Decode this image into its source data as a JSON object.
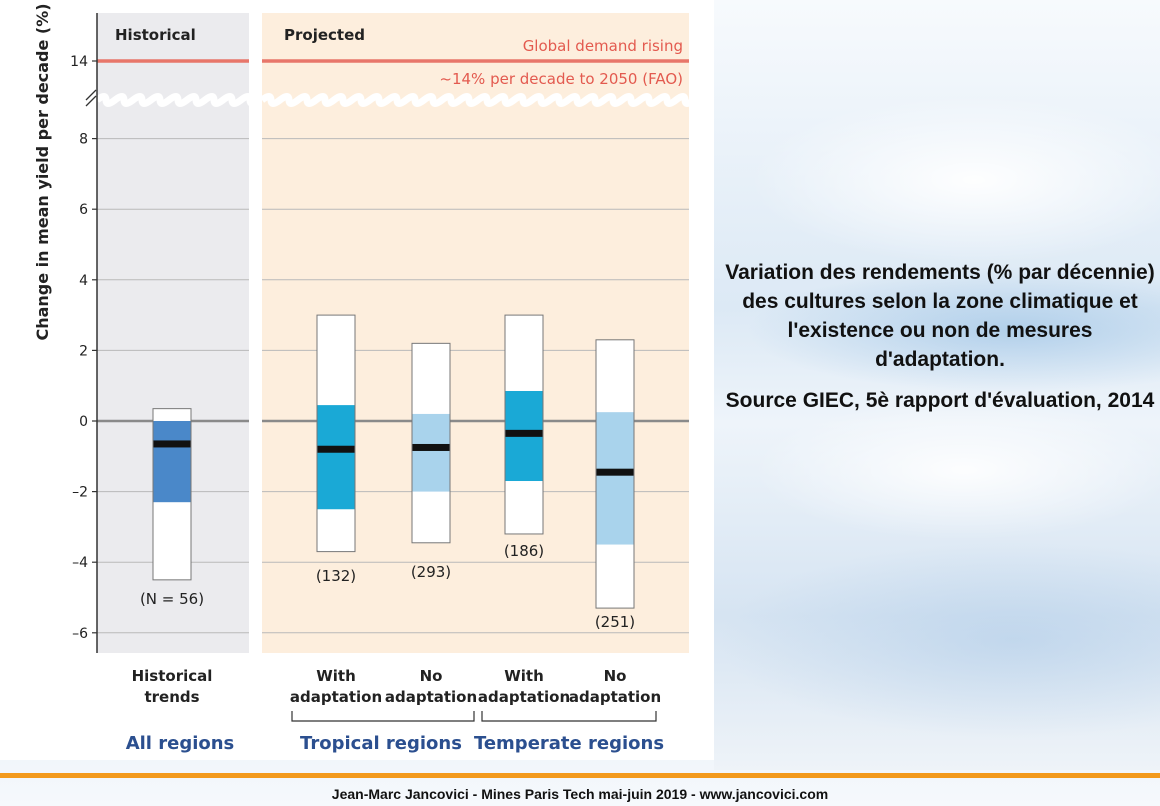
{
  "chart_data": {
    "type": "box",
    "ylabel": "Change in mean yield per decade (%)",
    "yticks": [
      "14",
      "8",
      "6",
      "4",
      "2",
      "0",
      "–2",
      "–4",
      "–6"
    ],
    "ylim": [
      -6.5,
      8.8
    ],
    "y_break": true,
    "panels": [
      {
        "title": "Historical",
        "background": "#ebebee"
      },
      {
        "title": "Projected",
        "background": "#fdeedd"
      }
    ],
    "reference_line": {
      "value": 14,
      "label_1": "Global demand rising",
      "label_2": "~14% per decade to 2050 (FAO)",
      "color": "#e8766a"
    },
    "boxes": [
      {
        "category_1": "Historical",
        "category_2": "trends",
        "n_label": "(N = 56)",
        "min": -4.5,
        "max": 0.35,
        "q1": -2.3,
        "q3": 0.0,
        "median": -0.65,
        "color": "#4a88c9"
      },
      {
        "category_1": "With",
        "category_2": "adaptation",
        "n_label": "(132)",
        "min": -3.7,
        "max": 3.0,
        "q1": -2.5,
        "q3": 0.45,
        "median": -0.8,
        "color": "#1aa9d6"
      },
      {
        "category_1": "No",
        "category_2": "adaptation",
        "n_label": "(293)",
        "min": -3.45,
        "max": 2.2,
        "q1": -2.0,
        "q3": 0.2,
        "median": -0.75,
        "color": "#a9d3ec"
      },
      {
        "category_1": "With",
        "category_2": "adaptation",
        "n_label": "(186)",
        "min": -3.2,
        "max": 3.0,
        "q1": -1.7,
        "q3": 0.85,
        "median": -0.35,
        "color": "#1aa9d6"
      },
      {
        "category_1": "No",
        "category_2": "adaptation",
        "n_label": "(251)",
        "min": -5.3,
        "max": 2.3,
        "q1": -3.5,
        "q3": 0.25,
        "median": -1.45,
        "color": "#a9d3ec"
      }
    ],
    "groups": [
      "All regions",
      "Tropical regions",
      "Temperate regions"
    ]
  },
  "caption": {
    "line1": "Variation des rendements (% par décennie) des cultures selon la zone climatique et l'existence ou non de mesures d'adaptation.",
    "line2": "Source GIEC, 5è rapport d'évaluation, 2014"
  },
  "footer": "Jean-Marc Jancovici - Mines Paris Tech mai-juin 2019 - www.jancovici.com"
}
